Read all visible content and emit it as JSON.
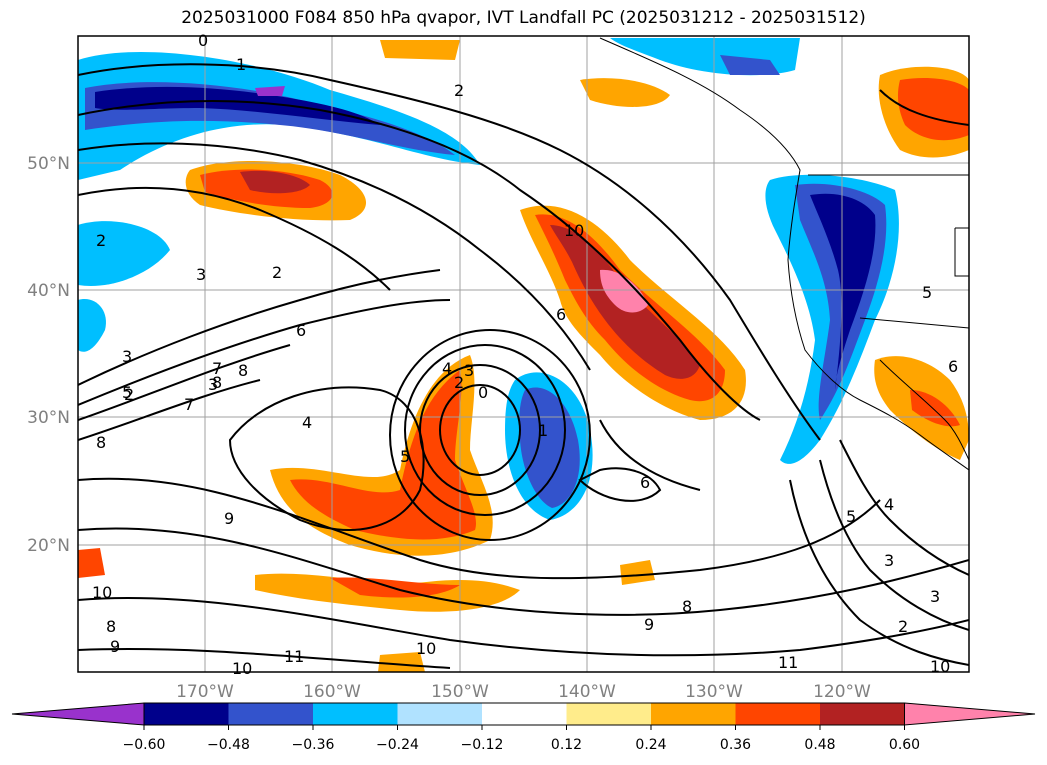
{
  "title": "2025031000 F084 850 hPa qvapor, IVT Landfall PC (2025031212 - 2025031512)",
  "map": {
    "projection": "PlateCarree",
    "lon_range": [
      -180,
      -110
    ],
    "lat_range": [
      10,
      60
    ],
    "gridlines": true,
    "lat_ticks": [
      {
        "value": 20,
        "label": "20°N"
      },
      {
        "value": 30,
        "label": "30°N"
      },
      {
        "value": 40,
        "label": "40°N"
      },
      {
        "value": 50,
        "label": "50°N"
      }
    ],
    "lon_ticks": [
      {
        "value": -170,
        "label": "170°W"
      },
      {
        "value": -160,
        "label": "160°W"
      },
      {
        "value": -150,
        "label": "150°W"
      },
      {
        "value": -140,
        "label": "140°W"
      },
      {
        "value": -130,
        "label": "130°W"
      },
      {
        "value": -120,
        "label": "120°W"
      }
    ]
  },
  "colorbar": {
    "extend": "both",
    "ticks": [
      "−0.60",
      "−0.48",
      "−0.36",
      "−0.24",
      "−0.12",
      "0.12",
      "0.24",
      "0.36",
      "0.48",
      "0.60"
    ],
    "colors": [
      "#9932cc",
      "#00008b",
      "#3353cc",
      "#00bfff",
      "#b0e2ff",
      "#ffffff",
      "#ffec8b",
      "#ffa500",
      "#ff4500",
      "#b22222",
      "#ff82ab"
    ]
  },
  "contour_labels": [
    "0",
    "1",
    "2",
    "2",
    "3",
    "2",
    "3",
    "2",
    "6",
    "3",
    "5",
    "7",
    "8",
    "8",
    "7",
    "8",
    "4",
    "5",
    "6",
    "4",
    "3",
    "0",
    "1",
    "2",
    "6",
    "5",
    "4",
    "3",
    "2",
    "3",
    "6",
    "5",
    "9",
    "10",
    "8",
    "9",
    "10",
    "11",
    "8",
    "9",
    "10",
    "11",
    "10",
    "10"
  ]
}
